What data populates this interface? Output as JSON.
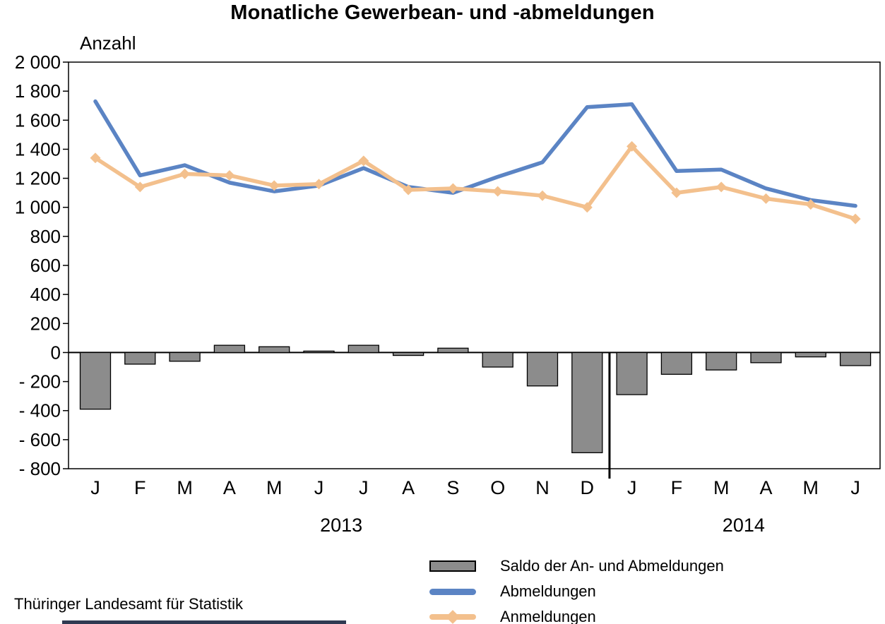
{
  "title": "Monatliche Gewerbean- und -abmeldungen",
  "y_axis_title": "Anzahl",
  "footer": {
    "source": "Thüringer Landesamt für Statistik"
  },
  "legend": {
    "position": "bottom",
    "items": [
      {
        "label": "Saldo der An- und Abmeldungen",
        "swatch": "bar",
        "color": "#8C8C8C"
      },
      {
        "label": "Abmeldungen",
        "swatch": "line",
        "color": "#5B84C4"
      },
      {
        "label": "Anmeldungen",
        "swatch": "line-diamond",
        "color": "#F3C08D"
      }
    ]
  },
  "colors": {
    "saldo_bar": "#8C8C8C",
    "saldo_bar_border": "#000000",
    "abmeldungen_line": "#5B84C4",
    "anmeldungen_line": "#F3C08D",
    "axis": "#000000"
  },
  "chart_data": {
    "type": "bar+line combo",
    "title": "Monatliche Gewerbean- und -abmeldungen",
    "ylabel": "Anzahl",
    "categories": [
      "J",
      "F",
      "M",
      "A",
      "M",
      "J",
      "J",
      "A",
      "S",
      "O",
      "N",
      "D",
      "J",
      "F",
      "M",
      "A",
      "M",
      "J"
    ],
    "year_groups": [
      {
        "label": "2013",
        "months": 12
      },
      {
        "label": "2014",
        "months": 6
      }
    ],
    "divider_after_index": 11,
    "ylim": [
      -800,
      2000
    ],
    "ytick_step": 200,
    "grid": false,
    "legend_position": "bottom",
    "series": [
      {
        "name": "Saldo der An- und Abmeldungen",
        "type": "bar",
        "color": "#8C8C8C",
        "values": [
          -390,
          -80,
          -60,
          50,
          40,
          10,
          50,
          -20,
          30,
          -100,
          -230,
          -690,
          -290,
          -150,
          -120,
          -70,
          -30,
          -90
        ]
      },
      {
        "name": "Abmeldungen",
        "type": "line",
        "color": "#5B84C4",
        "values": [
          1730,
          1220,
          1290,
          1170,
          1110,
          1150,
          1270,
          1140,
          1100,
          1210,
          1310,
          1690,
          1710,
          1250,
          1260,
          1130,
          1050,
          1010
        ]
      },
      {
        "name": "Anmeldungen",
        "type": "line",
        "marker": "diamond",
        "color": "#F3C08D",
        "values": [
          1340,
          1140,
          1230,
          1220,
          1150,
          1160,
          1320,
          1120,
          1130,
          1110,
          1080,
          1000,
          1420,
          1100,
          1140,
          1060,
          1020,
          920
        ]
      }
    ]
  }
}
